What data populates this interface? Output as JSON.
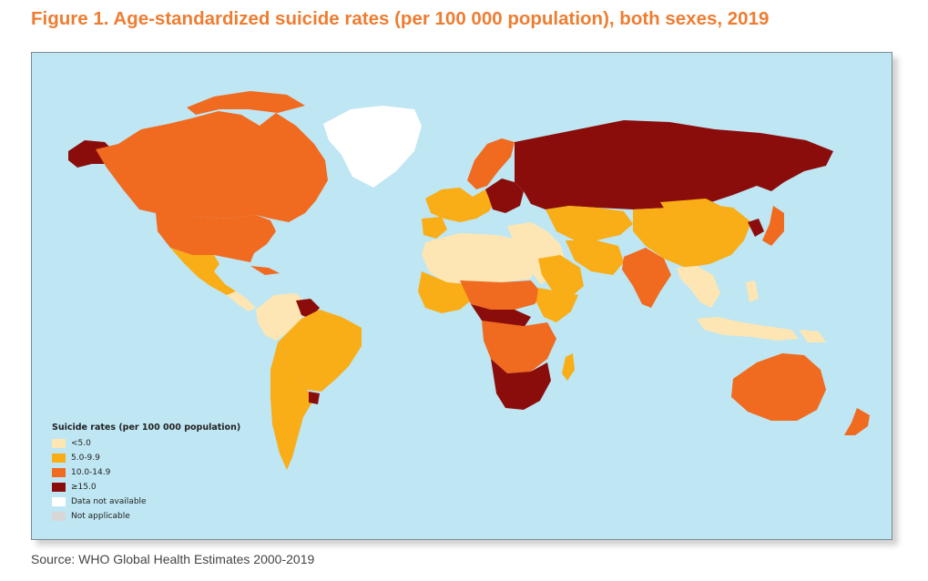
{
  "title": "Figure 1. Age-standardized suicide rates (per 100 000 population), both sexes, 2019",
  "source": "Source: WHO Global Health Estimates 2000-2019",
  "colors": {
    "title": "#ee7d31",
    "ocean": "#bfe6f3",
    "under_5": "#fde6b3",
    "5_to_9_9": "#f9ad16",
    "10_to_14_9": "#f06a1f",
    "15_plus": "#8b0d0b",
    "not_available": "#ffffff",
    "not_applicable": "#d7d7d7"
  },
  "legend": {
    "title": "Suicide rates (per 100 000 population)",
    "items": [
      {
        "label": "<5.0",
        "color": "#fde6b3"
      },
      {
        "label": "5.0-9.9",
        "color": "#f9ad16"
      },
      {
        "label": "10.0-14.9",
        "color": "#f06a1f"
      },
      {
        "label": "≥15.0",
        "color": "#8b0d0b"
      },
      {
        "label": "Data not available",
        "color": "#ffffff"
      },
      {
        "label": "Not applicable",
        "color": "#d7d7d7"
      }
    ]
  }
}
